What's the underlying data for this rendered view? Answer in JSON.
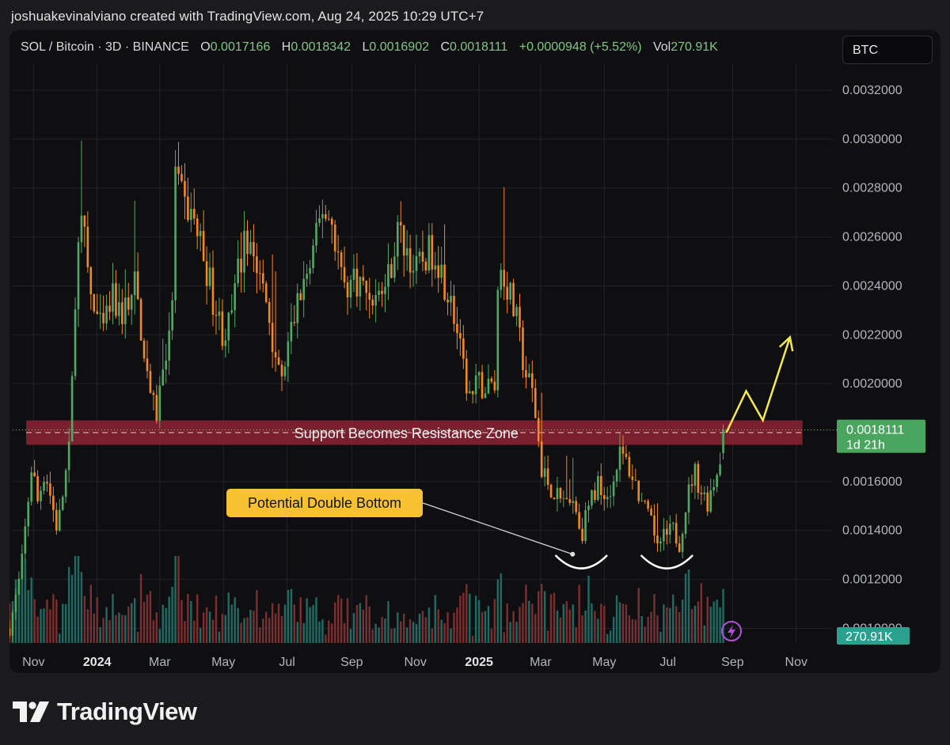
{
  "caption": "joshuakevinalviano created with TradingView.com, Aug 24, 2025 10:29 UTC+7",
  "legend": {
    "symbol": "SOL / Bitcoin · 3D · BINANCE",
    "open_label": "O",
    "open": "0.0017166",
    "high_label": "H",
    "high": "0.0018342",
    "low_label": "L",
    "low": "0.0016902",
    "close_label": "C",
    "close": "0.0018111",
    "change": "+0.0000948 (+5.52%)",
    "vol_label": "Vol",
    "vol": "270.91K"
  },
  "currency_button": "BTC",
  "brand": "TradingView",
  "colors": {
    "up": "#52a865",
    "down": "#f2891e",
    "vol_up": "#1f6b62",
    "vol_down": "#7a2f30",
    "zone": "#8c2232",
    "annotation": "#f7c132",
    "arrow": "#f5ea4b",
    "price_tag": "#4aa65e",
    "vol_tag": "#2aa18f",
    "grid": "#22232a",
    "axis_text": "#b2b5be"
  },
  "chart_data": {
    "type": "candlestick",
    "symbol": "SOL / Bitcoin",
    "interval": "3D",
    "exchange": "BINANCE",
    "y_axis": {
      "range": [
        0.00094,
        0.00331
      ],
      "tick_labels": [
        "0.0032000",
        "0.0030000",
        "0.0028000",
        "0.0026000",
        "0.0024000",
        "0.0022000",
        "0.0020000",
        "0.0016000",
        "0.0014000",
        "0.0012000",
        "0.0010000"
      ]
    },
    "x_axis": {
      "tick_labels": [
        "Nov",
        "2024",
        "Mar",
        "May",
        "Jul",
        "Sep",
        "Nov",
        "2025",
        "Mar",
        "May",
        "Jul",
        "Sep",
        "Nov"
      ],
      "bold_labels": [
        "2024",
        "2025"
      ],
      "start_date": "2023-10-09",
      "end_date": "2025-11-30"
    },
    "price_path": [
      [
        "2023-10-09",
        0.001
      ],
      [
        "2023-10-20",
        0.00123
      ],
      [
        "2023-10-31",
        0.0017
      ],
      [
        "2023-11-04",
        0.0015
      ],
      [
        "2023-11-12",
        0.00165
      ],
      [
        "2023-11-24",
        0.0014
      ],
      [
        "2023-12-06",
        0.00175
      ],
      [
        "2023-12-12",
        0.0025
      ],
      [
        "2023-12-18",
        0.00265
      ],
      [
        "2023-12-27",
        0.00232
      ],
      [
        "2024-01-06",
        0.0022
      ],
      [
        "2024-01-15",
        0.00235
      ],
      [
        "2024-01-24",
        0.00228
      ],
      [
        "2024-02-06",
        0.0024
      ],
      [
        "2024-02-20",
        0.002
      ],
      [
        "2024-02-26",
        0.00185
      ],
      [
        "2024-03-05",
        0.0021
      ],
      [
        "2024-03-12",
        0.0022
      ],
      [
        "2024-03-16",
        0.00285
      ],
      [
        "2024-03-22",
        0.00275
      ],
      [
        "2024-04-02",
        0.00268
      ],
      [
        "2024-04-12",
        0.00253
      ],
      [
        "2024-04-22",
        0.00233
      ],
      [
        "2024-05-01",
        0.0022
      ],
      [
        "2024-05-08",
        0.00225
      ],
      [
        "2024-05-16",
        0.00248
      ],
      [
        "2024-05-25",
        0.00262
      ],
      [
        "2024-06-03",
        0.00245
      ],
      [
        "2024-06-12",
        0.00232
      ],
      [
        "2024-06-20",
        0.00212
      ],
      [
        "2024-06-26",
        0.002
      ],
      [
        "2024-07-04",
        0.0022
      ],
      [
        "2024-07-14",
        0.00238
      ],
      [
        "2024-07-24",
        0.00248
      ],
      [
        "2024-08-04",
        0.00272
      ],
      [
        "2024-08-14",
        0.00265
      ],
      [
        "2024-08-24",
        0.0024
      ],
      [
        "2024-09-05",
        0.00243
      ],
      [
        "2024-09-15",
        0.00238
      ],
      [
        "2024-09-25",
        0.00235
      ],
      [
        "2024-10-05",
        0.00242
      ],
      [
        "2024-10-15",
        0.00262
      ],
      [
        "2024-10-24",
        0.00255
      ],
      [
        "2024-11-01",
        0.00245
      ],
      [
        "2024-11-10",
        0.00252
      ],
      [
        "2024-11-20",
        0.00255
      ],
      [
        "2024-11-28",
        0.00243
      ],
      [
        "2024-12-07",
        0.0023
      ],
      [
        "2024-12-17",
        0.00205
      ],
      [
        "2024-12-24",
        0.00193
      ],
      [
        "2024-12-31",
        0.002
      ],
      [
        "2025-01-08",
        0.00198
      ],
      [
        "2025-01-16",
        0.002
      ],
      [
        "2025-01-20",
        0.0025
      ],
      [
        "2025-01-28",
        0.0024
      ],
      [
        "2025-02-06",
        0.00225
      ],
      [
        "2025-02-14",
        0.00205
      ],
      [
        "2025-02-22",
        0.00195
      ],
      [
        "2025-03-02",
        0.00165
      ],
      [
        "2025-03-10",
        0.00158
      ],
      [
        "2025-03-20",
        0.00152
      ],
      [
        "2025-03-28",
        0.00155
      ],
      [
        "2025-04-05",
        0.00147
      ],
      [
        "2025-04-09",
        0.00138
      ],
      [
        "2025-04-16",
        0.0015
      ],
      [
        "2025-04-26",
        0.0016
      ],
      [
        "2025-05-04",
        0.00155
      ],
      [
        "2025-05-10",
        0.0016
      ],
      [
        "2025-05-14",
        0.00172
      ],
      [
        "2025-05-22",
        0.00168
      ],
      [
        "2025-05-30",
        0.0016
      ],
      [
        "2025-06-07",
        0.0015
      ],
      [
        "2025-06-15",
        0.00142
      ],
      [
        "2025-06-22",
        0.00135
      ],
      [
        "2025-06-30",
        0.00138
      ],
      [
        "2025-07-06",
        0.0014
      ],
      [
        "2025-07-12",
        0.00135
      ],
      [
        "2025-07-18",
        0.0015
      ],
      [
        "2025-07-26",
        0.00165
      ],
      [
        "2025-08-02",
        0.00156
      ],
      [
        "2025-08-08",
        0.00152
      ],
      [
        "2025-08-14",
        0.0016
      ],
      [
        "2025-08-18",
        0.00166
      ],
      [
        "2025-08-24",
        0.00181
      ]
    ],
    "last": {
      "date": "2025-08-24",
      "open": 0.0017166,
      "high": 0.0018342,
      "low": 0.0016902,
      "close": 0.0018111,
      "change": 9.48e-05,
      "change_pct": 5.52,
      "volume": "270.91K"
    },
    "price_tag": {
      "value": "0.0018111",
      "countdown": "1d 21h"
    },
    "volume_tag": "270.91K",
    "current_price_line": 0.0018111,
    "zone": {
      "label": "Support Becomes Resistance Zone",
      "low": 0.00175,
      "high": 0.00185,
      "from": "2023-10-25",
      "to": "2025-11-07"
    },
    "annotations": {
      "double_bottom": {
        "label": "Potential Double Bottom",
        "points": [
          [
            "2025-04-09",
            0.00129
          ],
          [
            "2025-06-30",
            0.00129
          ]
        ]
      },
      "projection_path": [
        [
          "2025-08-26",
          0.0018
        ],
        [
          "2025-09-14",
          0.00197
        ],
        [
          "2025-09-30",
          0.00185
        ],
        [
          "2025-10-26",
          0.00219
        ]
      ]
    }
  }
}
